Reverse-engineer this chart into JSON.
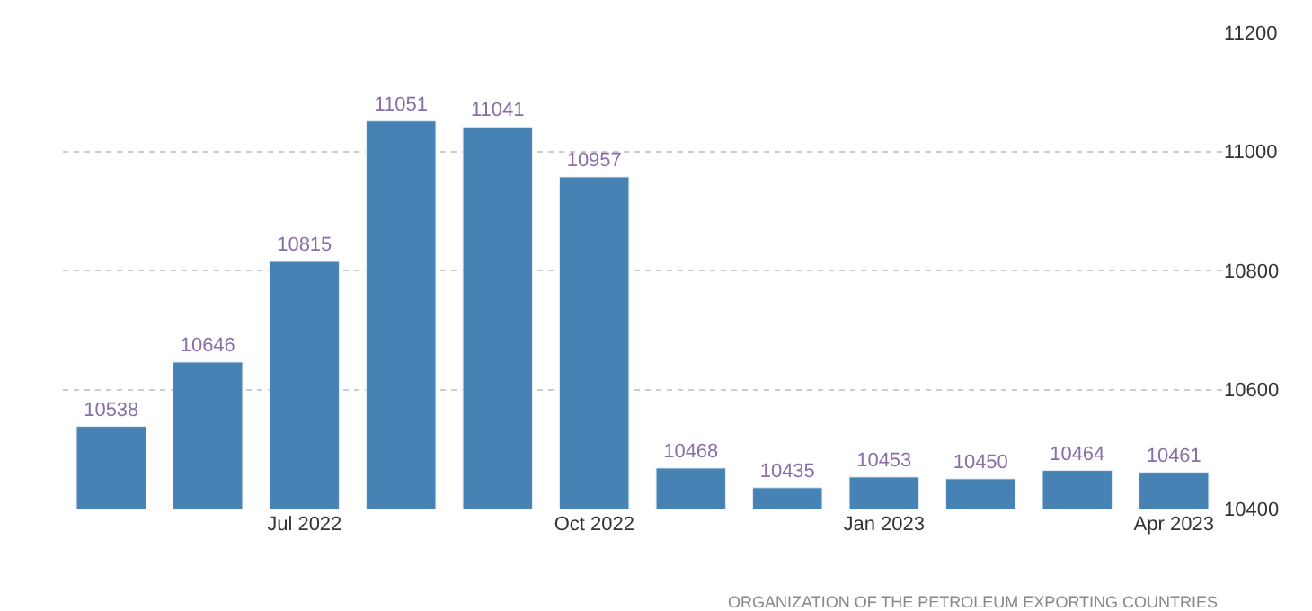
{
  "chart_data": {
    "type": "bar",
    "categories": [
      null,
      null,
      "Jul 2022",
      null,
      null,
      "Oct 2022",
      null,
      null,
      "Jan 2023",
      null,
      null,
      "Apr 2023"
    ],
    "values": [
      10538,
      10646,
      10815,
      11051,
      11041,
      10957,
      10468,
      10435,
      10453,
      10450,
      10464,
      10461
    ],
    "color": "#4682b4",
    "ylim": [
      10400,
      11200
    ],
    "yticks": [
      10400,
      10600,
      10800,
      11000,
      11200
    ],
    "grid": "y",
    "data_labels": true,
    "legend": false,
    "annotations": [
      "ORGANIZATION OF THE PETROLEUM EXPORTING COUNTRIES"
    ]
  }
}
